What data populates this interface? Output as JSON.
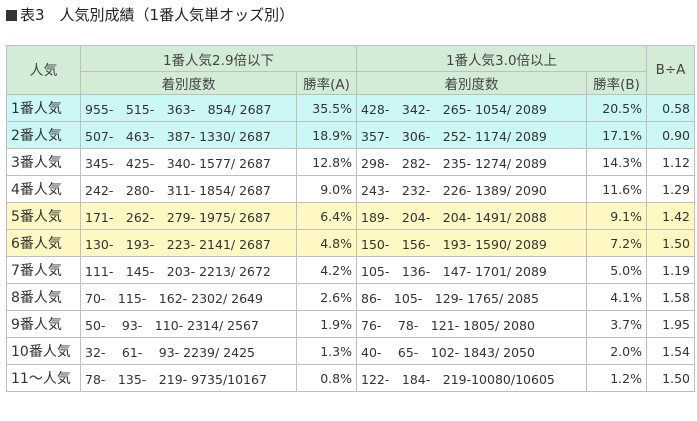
{
  "title": "表3　人気別成績（1番人気単オッズ別）",
  "header": {
    "ninki": "人気",
    "group_a": "1番人気2.9倍以下",
    "group_b": "1番人気3.0倍以上",
    "ratio": "B÷A",
    "record": "着別度数",
    "rate_a": "勝率(A)",
    "rate_b": "勝率(B)"
  },
  "colors": {
    "header_bg": "#d2ecd6",
    "top_rows": "#ccf7f7",
    "mid_rows": "#fff8c2",
    "border": "#bfbfbf"
  },
  "rows": [
    {
      "label": "1番人気",
      "rec_a": "955-　515-　363-　854/ 2687",
      "rate_a": "35.5%",
      "rec_b": "428-　342-　265- 1054/ 2089",
      "rate_b": "20.5%",
      "ratio": "0.58",
      "hl": "top"
    },
    {
      "label": "2番人気",
      "rec_a": "507-　463-　387- 1330/ 2687",
      "rate_a": "18.9%",
      "rec_b": "357-　306-　252- 1174/ 2089",
      "rate_b": "17.1%",
      "ratio": "0.90",
      "hl": "top"
    },
    {
      "label": "3番人気",
      "rec_a": "345-　425-　340- 1577/ 2687",
      "rate_a": "12.8%",
      "rec_b": "298-　282-　235- 1274/ 2089",
      "rate_b": "14.3%",
      "ratio": "1.12",
      "hl": "norm"
    },
    {
      "label": "4番人気",
      "rec_a": "242-　280-　311- 1854/ 2687",
      "rate_a": "9.0%",
      "rec_b": "243-　232-　226- 1389/ 2090",
      "rate_b": "11.6%",
      "ratio": "1.29",
      "hl": "norm"
    },
    {
      "label": "5番人気",
      "rec_a": "171-　262-　279- 1975/ 2687",
      "rate_a": "6.4%",
      "rec_b": "189-　204-　204- 1491/ 2088",
      "rate_b": "9.1%",
      "ratio": "1.42",
      "hl": "mid"
    },
    {
      "label": "6番人気",
      "rec_a": "130-　193-　223- 2141/ 2687",
      "rate_a": "4.8%",
      "rec_b": "150-　156-　193- 1590/ 2089",
      "rate_b": "7.2%",
      "ratio": "1.50",
      "hl": "mid"
    },
    {
      "label": "7番人気",
      "rec_a": "111-　145-　203- 2213/ 2672",
      "rate_a": "4.2%",
      "rec_b": "105-　136-　147- 1701/ 2089",
      "rate_b": "5.0%",
      "ratio": "1.19",
      "hl": "norm"
    },
    {
      "label": "8番人気",
      "rec_a": "70-　115-　162- 2302/ 2649",
      "rate_a": "2.6%",
      "rec_b": "86-　105-　129- 1765/ 2085",
      "rate_b": "4.1%",
      "ratio": "1.58",
      "hl": "norm"
    },
    {
      "label": "9番人気",
      "rec_a": "50-　 93-　110- 2314/ 2567",
      "rate_a": "1.9%",
      "rec_b": "76-　 78-　121- 1805/ 2080",
      "rate_b": "3.7%",
      "ratio": "1.95",
      "hl": "norm"
    },
    {
      "label": "10番人気",
      "rec_a": "32-　 61-　 93- 2239/ 2425",
      "rate_a": "1.3%",
      "rec_b": "40-　 65-　102- 1843/ 2050",
      "rate_b": "2.0%",
      "ratio": "1.54",
      "hl": "norm"
    },
    {
      "label": "11～人気",
      "rec_a": "78-　135-　219- 9735/10167",
      "rate_a": "0.8%",
      "rec_b": "122-　184-　219-10080/10605",
      "rate_b": "1.2%",
      "ratio": "1.50",
      "hl": "norm"
    }
  ]
}
